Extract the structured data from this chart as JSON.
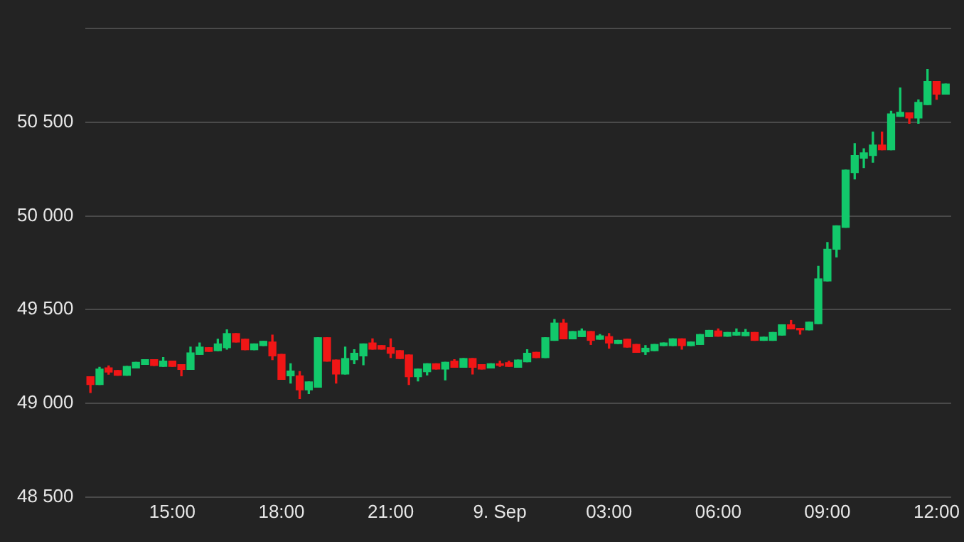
{
  "chart_data": {
    "type": "candlestick",
    "x": [
      "--09-08T12:45",
      "--09-08T13:00",
      "--09-08T13:15",
      "--09-08T13:30",
      "--09-08T13:45",
      "--09-08T14:00",
      "--09-08T14:15",
      "--09-08T14:30",
      "--09-08T14:45",
      "--09-08T15:00",
      "--09-08T15:15",
      "--09-08T15:30",
      "--09-08T15:45",
      "--09-08T16:00",
      "--09-08T16:15",
      "--09-08T16:30",
      "--09-08T16:45",
      "--09-08T17:00",
      "--09-08T17:15",
      "--09-08T17:30",
      "--09-08T17:45",
      "--09-08T18:00",
      "--09-08T18:15",
      "--09-08T18:30",
      "--09-08T18:45",
      "--09-08T19:00",
      "--09-08T19:15",
      "--09-08T19:30",
      "--09-08T19:45",
      "--09-08T20:00",
      "--09-08T20:15",
      "--09-08T20:30",
      "--09-08T20:45",
      "--09-08T21:00",
      "--09-08T21:15",
      "--09-08T21:30",
      "--09-08T21:45",
      "--09-08T22:00",
      "--09-08T22:15",
      "--09-08T22:30",
      "--09-08T22:45",
      "--09-08T23:00",
      "--09-08T23:15",
      "--09-08T23:30",
      "--09-08T23:45",
      "--09-09T00:00",
      "--09-09T00:15",
      "--09-09T00:30",
      "--09-09T00:45",
      "--09-09T01:00",
      "--09-09T01:15",
      "--09-09T01:30",
      "--09-09T01:45",
      "--09-09T02:00",
      "--09-09T02:15",
      "--09-09T02:30",
      "--09-09T02:45",
      "--09-09T03:00",
      "--09-09T03:15",
      "--09-09T03:30",
      "--09-09T03:45",
      "--09-09T04:00",
      "--09-09T04:15",
      "--09-09T04:30",
      "--09-09T04:45",
      "--09-09T05:00",
      "--09-09T05:15",
      "--09-09T05:30",
      "--09-09T05:45",
      "--09-09T06:00",
      "--09-09T06:15",
      "--09-09T06:30",
      "--09-09T06:45",
      "--09-09T07:00",
      "--09-09T07:15",
      "--09-09T07:30",
      "--09-09T07:45",
      "--09-09T08:00",
      "--09-09T08:15",
      "--09-09T08:30",
      "--09-09T08:45",
      "--09-09T09:00",
      "--09-09T09:15",
      "--09-09T09:30",
      "--09-09T09:45",
      "--09-09T10:00",
      "--09-09T10:15",
      "--09-09T10:30",
      "--09-09T10:45",
      "--09-09T11:00",
      "--09-09T11:15",
      "--09-09T11:30",
      "--09-09T11:45",
      "--09-09T12:00",
      "--09-09T12:15"
    ],
    "ohlc": [
      [
        49142,
        49142,
        49058,
        49100
      ],
      [
        49100,
        49192,
        49100,
        49183
      ],
      [
        49189,
        49200,
        49155,
        49167
      ],
      [
        49175,
        49175,
        49150,
        49150
      ],
      [
        49150,
        49197,
        49150,
        49197
      ],
      [
        49189,
        49219,
        49189,
        49219
      ],
      [
        49208,
        49233,
        49208,
        49233
      ],
      [
        49233,
        49233,
        49202,
        49202
      ],
      [
        49197,
        49244,
        49197,
        49225
      ],
      [
        49225,
        49225,
        49197,
        49197
      ],
      [
        49206,
        49206,
        49147,
        49181
      ],
      [
        49181,
        49300,
        49181,
        49269
      ],
      [
        49261,
        49322,
        49261,
        49300
      ],
      [
        49297,
        49297,
        49277,
        49277
      ],
      [
        49281,
        49342,
        49281,
        49317
      ],
      [
        49297,
        49392,
        49289,
        49372
      ],
      [
        49372,
        49372,
        49327,
        49327
      ],
      [
        49342,
        49342,
        49286,
        49286
      ],
      [
        49286,
        49317,
        49286,
        49317
      ],
      [
        49308,
        49331,
        49308,
        49331
      ],
      [
        49327,
        49364,
        49233,
        49253
      ],
      [
        49261,
        49261,
        49128,
        49128
      ],
      [
        49147,
        49211,
        49108,
        49172
      ],
      [
        49147,
        49169,
        49025,
        49072
      ],
      [
        49072,
        49114,
        49052,
        49114
      ],
      [
        49086,
        49350,
        49086,
        49350
      ],
      [
        49350,
        49350,
        49225,
        49225
      ],
      [
        49231,
        49231,
        49108,
        49156
      ],
      [
        49156,
        49300,
        49156,
        49239
      ],
      [
        49233,
        49286,
        49211,
        49267
      ],
      [
        49253,
        49317,
        49206,
        49317
      ],
      [
        49322,
        49344,
        49289,
        49289
      ],
      [
        49308,
        49308,
        49289,
        49289
      ],
      [
        49297,
        49344,
        49244,
        49267
      ],
      [
        49281,
        49281,
        49239,
        49239
      ],
      [
        49258,
        49258,
        49100,
        49142
      ],
      [
        49142,
        49183,
        49119,
        49183
      ],
      [
        49169,
        49211,
        49152,
        49211
      ],
      [
        49211,
        49211,
        49183,
        49183
      ],
      [
        49183,
        49219,
        49125,
        49219
      ],
      [
        49225,
        49233,
        49192,
        49192
      ],
      [
        49192,
        49239,
        49192,
        49239
      ],
      [
        49239,
        49239,
        49156,
        49192
      ],
      [
        49206,
        49206,
        49183,
        49183
      ],
      [
        49189,
        49211,
        49189,
        49211
      ],
      [
        49211,
        49225,
        49197,
        49203
      ],
      [
        49217,
        49225,
        49197,
        49197
      ],
      [
        49192,
        49231,
        49192,
        49231
      ],
      [
        49222,
        49286,
        49222,
        49267
      ],
      [
        49272,
        49272,
        49244,
        49244
      ],
      [
        49244,
        49350,
        49244,
        49350
      ],
      [
        49336,
        49447,
        49336,
        49428
      ],
      [
        49428,
        49447,
        49344,
        49344
      ],
      [
        49344,
        49383,
        49344,
        49383
      ],
      [
        49356,
        49397,
        49356,
        49386
      ],
      [
        49383,
        49383,
        49314,
        49336
      ],
      [
        49342,
        49367,
        49342,
        49360
      ],
      [
        49356,
        49372,
        49294,
        49322
      ],
      [
        49319,
        49336,
        49319,
        49336
      ],
      [
        49342,
        49342,
        49300,
        49300
      ],
      [
        49314,
        49314,
        49272,
        49272
      ],
      [
        49275,
        49308,
        49261,
        49294
      ],
      [
        49281,
        49314,
        49281,
        49314
      ],
      [
        49308,
        49322,
        49308,
        49322
      ],
      [
        49308,
        49344,
        49308,
        49344
      ],
      [
        49344,
        49344,
        49289,
        49308
      ],
      [
        49308,
        49327,
        49308,
        49327
      ],
      [
        49314,
        49367,
        49314,
        49367
      ],
      [
        49356,
        49389,
        49356,
        49389
      ],
      [
        49386,
        49397,
        49358,
        49358
      ],
      [
        49358,
        49378,
        49358,
        49378
      ],
      [
        49364,
        49397,
        49364,
        49378
      ],
      [
        49361,
        49394,
        49361,
        49378
      ],
      [
        49378,
        49378,
        49336,
        49336
      ],
      [
        49336,
        49353,
        49336,
        49353
      ],
      [
        49336,
        49378,
        49336,
        49378
      ],
      [
        49364,
        49419,
        49364,
        49419
      ],
      [
        49419,
        49442,
        49397,
        49397
      ],
      [
        49400,
        49400,
        49369,
        49392
      ],
      [
        49392,
        49433,
        49392,
        49433
      ],
      [
        49425,
        49731,
        49425,
        49664
      ],
      [
        49653,
        49858,
        49653,
        49822
      ],
      [
        49822,
        49947,
        49781,
        49947
      ],
      [
        49939,
        50244,
        49939,
        50244
      ],
      [
        50231,
        50386,
        50197,
        50322
      ],
      [
        50308,
        50358,
        50258,
        50336
      ],
      [
        50322,
        50447,
        50286,
        50378
      ],
      [
        50378,
        50447,
        50353,
        50353
      ],
      [
        50353,
        50558,
        50353,
        50544
      ],
      [
        50531,
        50683,
        50531,
        50553
      ],
      [
        50550,
        50550,
        50494,
        50522
      ],
      [
        50522,
        50619,
        50494,
        50606
      ],
      [
        50594,
        50781,
        50594,
        50717
      ],
      [
        50717,
        50717,
        50622,
        50650
      ],
      [
        50650,
        50703,
        50650,
        50703
      ]
    ],
    "xlim": [
      "--09-08T12:36",
      "--09-09T12:24"
    ],
    "xticks": [
      {
        "value": "--09-08T15:00",
        "label": "15:00"
      },
      {
        "value": "--09-08T18:00",
        "label": "18:00"
      },
      {
        "value": "--09-08T21:00",
        "label": "21:00"
      },
      {
        "value": "--09-09T00:00",
        "label": "9. Sep"
      },
      {
        "value": "--09-09T03:00",
        "label": "03:00"
      },
      {
        "value": "--09-09T06:00",
        "label": "06:00"
      },
      {
        "value": "--09-09T09:00",
        "label": "09:00"
      },
      {
        "value": "--09-09T12:00",
        "label": "12:00"
      }
    ],
    "ylim": [
      48500,
      51000
    ],
    "yticks": [
      {
        "value": 48500,
        "label": "48 500"
      },
      {
        "value": 49000,
        "label": "49 000"
      },
      {
        "value": 49500,
        "label": "49 500"
      },
      {
        "value": 50000,
        "label": "50 000"
      },
      {
        "value": 50500,
        "label": "50 500"
      },
      {
        "value": 51000,
        "label": null
      }
    ],
    "grid": "y",
    "legend": false
  }
}
